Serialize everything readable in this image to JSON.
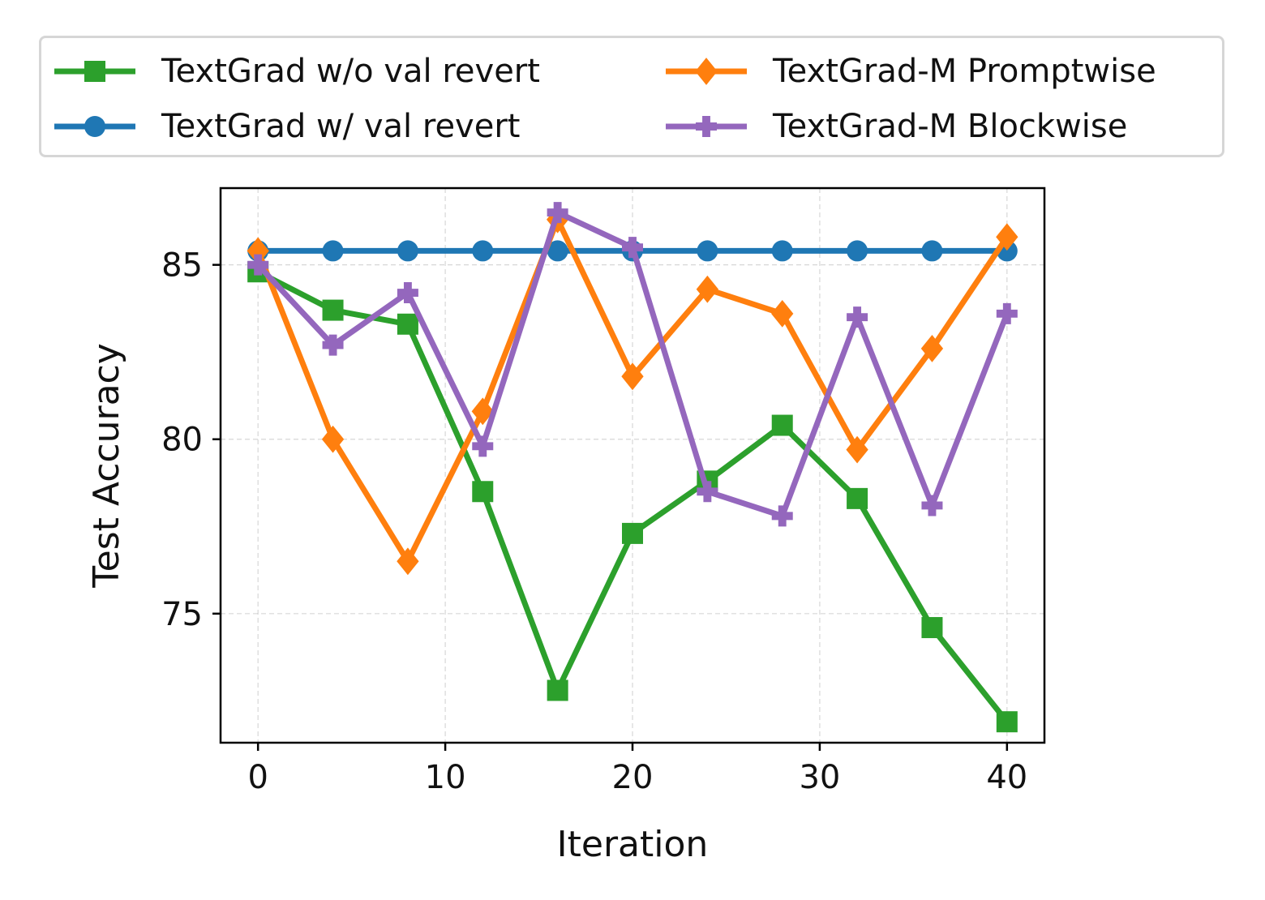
{
  "chart_data": {
    "type": "line",
    "title": "",
    "xlabel": "Iteration",
    "ylabel": "Test Accuracy",
    "xlim": [
      -2,
      42
    ],
    "ylim": [
      71.3,
      87.2
    ],
    "xticks": [
      0,
      10,
      20,
      30,
      40
    ],
    "yticks": [
      75,
      80,
      85
    ],
    "grid": true,
    "legend_position": "top, above plot, 2 columns",
    "x": [
      0,
      4,
      8,
      12,
      16,
      20,
      24,
      28,
      32,
      36,
      40
    ],
    "series": [
      {
        "name": "TextGrad w/o val revert",
        "color": "#2ca02c",
        "marker": "square",
        "values": [
          84.8,
          83.7,
          83.3,
          78.5,
          72.8,
          77.3,
          78.8,
          80.4,
          78.3,
          74.6,
          71.9
        ]
      },
      {
        "name": "TextGrad w/ val revert",
        "color": "#1f77b4",
        "marker": "circle",
        "values": [
          85.4,
          85.4,
          85.4,
          85.4,
          85.4,
          85.4,
          85.4,
          85.4,
          85.4,
          85.4,
          85.4
        ]
      },
      {
        "name": "TextGrad-M Promptwise",
        "color": "#ff7f0e",
        "marker": "diamond",
        "values": [
          85.4,
          80.0,
          76.5,
          80.8,
          86.3,
          81.8,
          84.3,
          83.6,
          79.7,
          82.6,
          85.8
        ]
      },
      {
        "name": "TextGrad-M Blockwise",
        "color": "#9467bd",
        "marker": "plus",
        "values": [
          85.0,
          82.7,
          84.2,
          79.8,
          86.5,
          85.5,
          78.5,
          77.8,
          83.5,
          78.1,
          83.6
        ]
      }
    ]
  }
}
